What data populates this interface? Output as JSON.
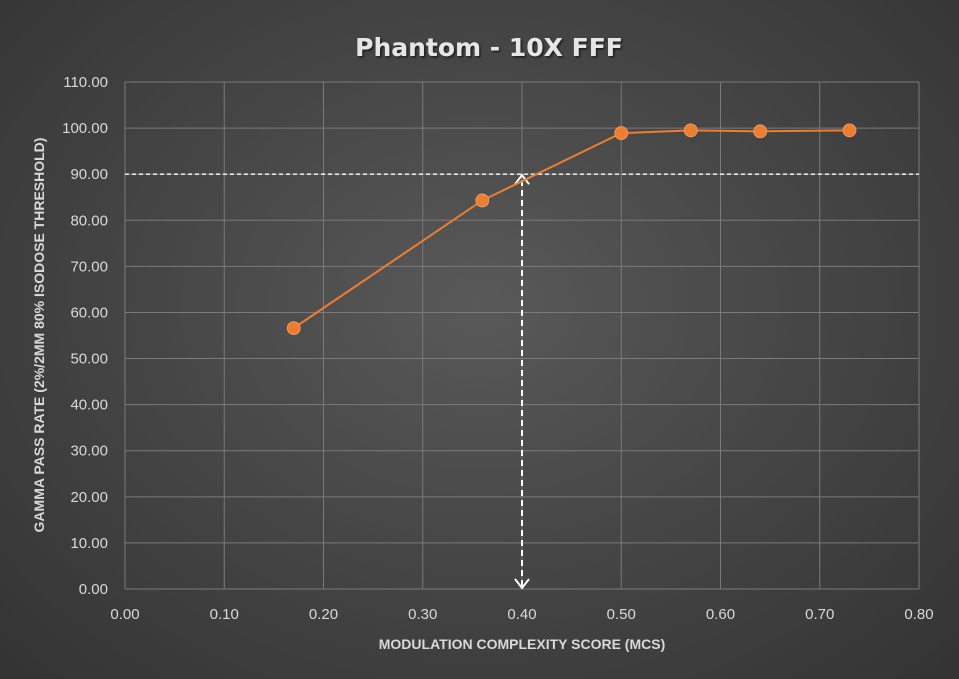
{
  "chart_data": {
    "type": "scatter",
    "title": "Phantom - 10X FFF",
    "xlabel": "MODULATION  COMPLEXITY SCORE (MCS)",
    "ylabel": "GAMMA PASS RATE (2%/2MM 80% ISODOSE THRESHOLD)",
    "xlim": [
      0,
      0.8
    ],
    "ylim": [
      0,
      110
    ],
    "x_ticks": [
      "0.00",
      "0.10",
      "0.20",
      "0.30",
      "0.40",
      "0.50",
      "0.60",
      "0.70",
      "0.80"
    ],
    "y_ticks": [
      "0.00",
      "10.00",
      "20.00",
      "30.00",
      "40.00",
      "50.00",
      "60.00",
      "70.00",
      "80.00",
      "90.00",
      "100.00",
      "110.00"
    ],
    "grid": true,
    "series": [
      {
        "color": "#ed7d31",
        "points": [
          {
            "x": 0.17,
            "y": 56.6
          },
          {
            "x": 0.36,
            "y": 84.3
          },
          {
            "x": 0.5,
            "y": 98.9
          },
          {
            "x": 0.57,
            "y": 99.5
          },
          {
            "x": 0.64,
            "y": 99.3
          },
          {
            "x": 0.73,
            "y": 99.5
          }
        ]
      }
    ],
    "annotations": [
      {
        "type": "horizontal-dashed-line",
        "y": 90
      },
      {
        "type": "vertical-dashed-double-arrow",
        "x": 0.4,
        "y_from": 0,
        "y_to": 90
      }
    ]
  },
  "colors": {
    "series": "#ed7d31",
    "grid": "#7a7a7a",
    "text": "#d9d9d9",
    "reference_line": "#ffffff"
  }
}
